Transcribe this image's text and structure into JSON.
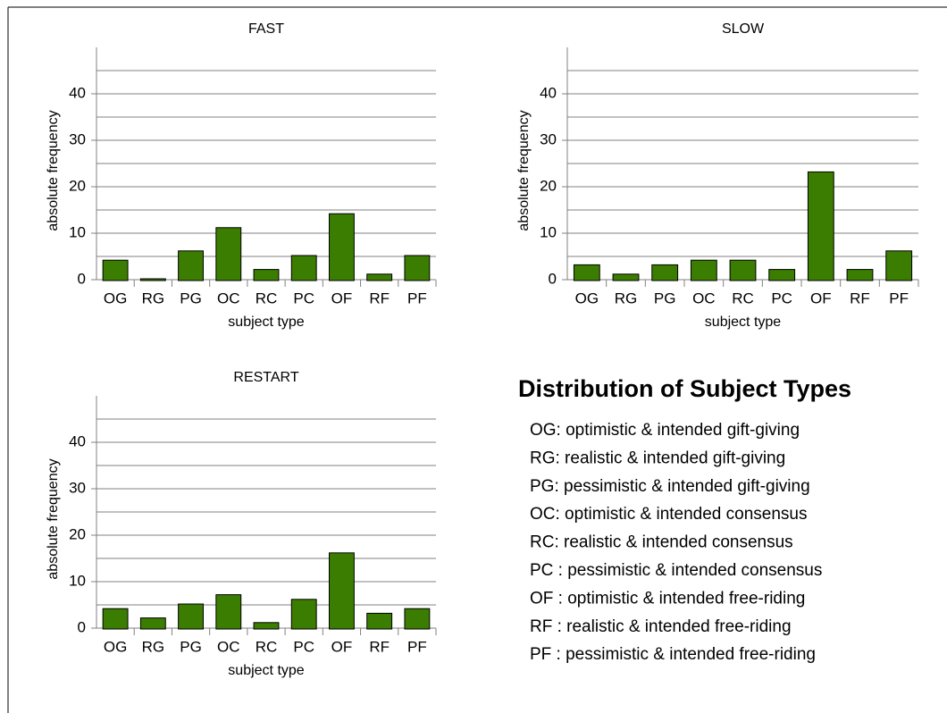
{
  "chart_data": [
    {
      "type": "bar",
      "title": "FAST",
      "x_label": "subject type",
      "y_label": "absolute frequency",
      "categories": [
        "OG",
        "RG",
        "PG",
        "OC",
        "RC",
        "PC",
        "OF",
        "RF",
        "PF"
      ],
      "values": [
        4,
        0,
        6,
        11,
        2,
        5,
        14,
        1,
        5
      ],
      "color": "#3a7d00",
      "ylim": [
        0,
        50
      ],
      "yticks": [
        0,
        10,
        20,
        30,
        40
      ],
      "minor_yticks": [
        5,
        15,
        25,
        35,
        45
      ],
      "grid": true
    },
    {
      "type": "bar",
      "title": "SLOW",
      "x_label": "subject type",
      "y_label": "absolute frequency",
      "categories": [
        "OG",
        "RG",
        "PG",
        "OC",
        "RC",
        "PC",
        "OF",
        "RF",
        "PF"
      ],
      "values": [
        3,
        1,
        3,
        4,
        4,
        2,
        23,
        2,
        6
      ],
      "color": "#3a7d00",
      "ylim": [
        0,
        50
      ],
      "yticks": [
        0,
        10,
        20,
        30,
        40
      ],
      "minor_yticks": [
        5,
        15,
        25,
        35,
        45
      ],
      "grid": true
    },
    {
      "type": "bar",
      "title": "RESTART",
      "x_label": "subject type",
      "y_label": "absolute frequency",
      "categories": [
        "OG",
        "RG",
        "PG",
        "OC",
        "RC",
        "PC",
        "OF",
        "RF",
        "PF"
      ],
      "values": [
        4,
        2,
        5,
        7,
        1,
        6,
        16,
        3,
        4
      ],
      "color": "#3a7d00",
      "ylim": [
        0,
        50
      ],
      "yticks": [
        0,
        10,
        20,
        30,
        40
      ],
      "minor_yticks": [
        5,
        15,
        25,
        35,
        45
      ],
      "grid": true
    }
  ],
  "key_panel": {
    "title": "Distribution of Subject Types",
    "entries": [
      "OG: optimistic & intended gift-giving",
      "RG: realistic & intended gift-giving",
      "PG: pessimistic & intended gift-giving",
      "OC: optimistic & intended consensus",
      "RC: realistic & intended consensus",
      "PC : pessimistic & intended consensus",
      "OF : optimistic & intended free-riding",
      "RF : realistic & intended free-riding",
      "PF : pessimistic & intended free-riding"
    ]
  }
}
